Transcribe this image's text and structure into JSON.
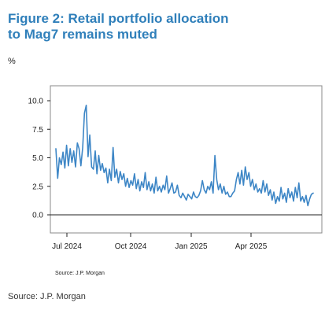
{
  "title": "Figure 2: Retail portfolio allocation to Mag7 remains muted",
  "unit": "%",
  "inner_source": "Source: J.P. Morgan",
  "source": "Source: J.P. Morgan",
  "colors": {
    "title": "#2f7fba",
    "line": "#3d86c6",
    "axis": "#222222",
    "frame": "#888888"
  },
  "chart_data": {
    "type": "line",
    "title": "Figure 2: Retail portfolio allocation to Mag7 remains muted",
    "xlabel": "",
    "ylabel": "%",
    "ylim": [
      0,
      10.5
    ],
    "grid": false,
    "x_ticks": [
      "Jul 2024",
      "Oct 2024",
      "Jan 2025",
      "Apr 2025"
    ],
    "y_ticks": [
      "0.0",
      "2.5",
      "5.0",
      "7.5",
      "10.0"
    ],
    "series": [
      {
        "values": [
          5.8,
          3.2,
          5.0,
          4.4,
          5.5,
          4.1,
          6.1,
          4.3,
          5.8,
          4.6,
          5.6,
          4.2,
          6.3,
          5.8,
          4.3,
          5.9,
          8.9,
          9.6,
          5.1,
          7.0,
          4.2,
          4.0,
          5.6,
          3.6,
          5.2,
          3.9,
          4.5,
          3.7,
          4.1,
          2.8,
          4.0,
          3.0,
          5.9,
          3.3,
          4.0,
          2.8,
          3.8,
          3.1,
          3.6,
          2.5,
          3.2,
          2.4,
          3.0,
          2.6,
          3.6,
          2.3,
          3.1,
          2.1,
          2.9,
          2.4,
          3.7,
          2.2,
          2.9,
          2.1,
          2.7,
          1.9,
          3.3,
          2.1,
          2.5,
          2.0,
          2.6,
          2.2,
          3.4,
          1.9,
          2.3,
          2.8,
          1.9,
          2.0,
          2.6,
          1.7,
          1.5,
          1.9,
          1.6,
          1.3,
          1.8,
          1.6,
          1.4,
          2.0,
          1.6,
          1.5,
          1.7,
          2.1,
          3.0,
          2.2,
          1.9,
          2.5,
          2.2,
          2.9,
          1.9,
          5.2,
          3.1,
          2.2,
          2.7,
          1.9,
          2.5,
          1.8,
          2.0,
          1.6,
          1.6,
          1.9,
          2.1,
          3.1,
          3.7,
          2.7,
          3.9,
          2.6,
          4.2,
          3.1,
          3.7,
          2.5,
          3.1,
          2.2,
          2.7,
          2.0,
          2.3,
          1.9,
          3.0,
          2.0,
          2.7,
          1.7,
          2.2,
          1.3,
          2.0,
          1.0,
          1.6,
          1.2,
          2.4,
          1.4,
          1.9,
          1.1,
          2.3,
          1.5,
          2.0,
          1.2,
          2.4,
          1.5,
          2.8,
          1.2,
          1.6,
          1.1,
          1.7,
          0.8,
          1.4,
          1.8,
          1.9
        ]
      }
    ]
  }
}
